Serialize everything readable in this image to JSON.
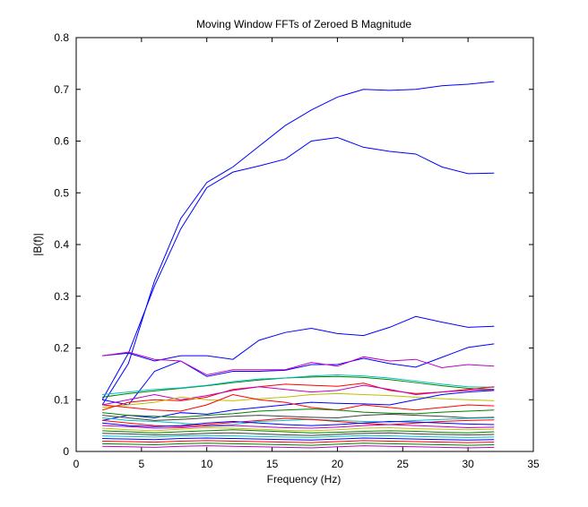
{
  "chart_data": {
    "type": "line",
    "title": "Moving Window FFTs of Zeroed B Magnitude",
    "xlabel": "Frequency (Hz)",
    "ylabel": "|B(f)|",
    "xlim": [
      0,
      35
    ],
    "ylim": [
      0,
      0.8
    ],
    "x_ticks": [
      0,
      5,
      10,
      15,
      20,
      25,
      30,
      35
    ],
    "y_ticks": [
      0,
      0.1,
      0.2,
      0.3,
      0.4,
      0.5,
      0.6,
      0.7,
      0.8
    ],
    "grid": false,
    "legend": "none",
    "x": [
      2,
      4,
      6,
      8,
      10,
      12,
      14,
      16,
      18,
      20,
      22,
      24,
      26,
      28,
      30,
      32
    ],
    "series_colors": [
      "#0000ff",
      "#008000",
      "#ff0000",
      "#00bfbf",
      "#bf00bf",
      "#bfbf00",
      "#404040"
    ],
    "series": [
      {
        "color": "#0000ff",
        "values": [
          0.09,
          0.17,
          0.33,
          0.45,
          0.52,
          0.55,
          0.59,
          0.63,
          0.66,
          0.685,
          0.7,
          0.698,
          0.7,
          0.707,
          0.71,
          0.715
        ]
      },
      {
        "color": "#0000ff",
        "values": [
          0.1,
          0.19,
          0.32,
          0.43,
          0.51,
          0.54,
          0.552,
          0.565,
          0.6,
          0.607,
          0.588,
          0.58,
          0.575,
          0.55,
          0.537,
          0.538
        ]
      },
      {
        "color": "#0000ff",
        "values": [
          0.185,
          0.19,
          0.175,
          0.185,
          0.185,
          0.178,
          0.215,
          0.23,
          0.238,
          0.228,
          0.224,
          0.24,
          0.261,
          0.25,
          0.24,
          0.242
        ]
      },
      {
        "color": "#0000ff",
        "values": [
          0.1,
          0.09,
          0.155,
          0.175,
          0.145,
          0.155,
          0.155,
          0.157,
          0.168,
          0.168,
          0.18,
          0.17,
          0.163,
          0.182,
          0.201,
          0.208
        ]
      },
      {
        "color": "#bf00bf",
        "values": [
          0.185,
          0.192,
          0.178,
          0.175,
          0.148,
          0.158,
          0.158,
          0.158,
          0.172,
          0.165,
          0.183,
          0.175,
          0.178,
          0.162,
          0.168,
          0.165
        ]
      },
      {
        "color": "#008000",
        "values": [
          0.105,
          0.112,
          0.117,
          0.122,
          0.127,
          0.133,
          0.138,
          0.142,
          0.144,
          0.145,
          0.143,
          0.139,
          0.133,
          0.127,
          0.122,
          0.12
        ]
      },
      {
        "color": "#00bfbf",
        "values": [
          0.11,
          0.115,
          0.12,
          0.123,
          0.128,
          0.135,
          0.14,
          0.142,
          0.146,
          0.148,
          0.146,
          0.142,
          0.136,
          0.13,
          0.125,
          0.124
        ]
      },
      {
        "color": "#ff0000",
        "values": [
          0.08,
          0.095,
          0.1,
          0.098,
          0.105,
          0.12,
          0.125,
          0.13,
          0.128,
          0.126,
          0.132,
          0.118,
          0.112,
          0.115,
          0.12,
          0.125
        ]
      },
      {
        "color": "#bf00bf",
        "values": [
          0.09,
          0.1,
          0.11,
          0.1,
          0.108,
          0.118,
          0.125,
          0.12,
          0.115,
          0.118,
          0.128,
          0.12,
          0.11,
          0.115,
          0.118,
          0.12
        ]
      },
      {
        "color": "#bfbf00",
        "values": [
          0.085,
          0.09,
          0.095,
          0.105,
          0.1,
          0.098,
          0.102,
          0.105,
          0.11,
          0.112,
          0.11,
          0.108,
          0.105,
          0.102,
          0.1,
          0.098
        ]
      },
      {
        "color": "#0000ff",
        "values": [
          0.06,
          0.07,
          0.065,
          0.075,
          0.072,
          0.08,
          0.085,
          0.09,
          0.095,
          0.093,
          0.092,
          0.09,
          0.1,
          0.11,
          0.115,
          0.118
        ]
      },
      {
        "color": "#ff0000",
        "values": [
          0.09,
          0.085,
          0.08,
          0.078,
          0.09,
          0.11,
          0.1,
          0.095,
          0.085,
          0.08,
          0.09,
          0.085,
          0.08,
          0.085,
          0.09,
          0.088
        ]
      },
      {
        "color": "#008000",
        "values": [
          0.075,
          0.07,
          0.068,
          0.066,
          0.07,
          0.073,
          0.078,
          0.08,
          0.082,
          0.08,
          0.076,
          0.074,
          0.073,
          0.076,
          0.078,
          0.08
        ]
      },
      {
        "color": "#404040",
        "values": [
          0.07,
          0.065,
          0.06,
          0.062,
          0.065,
          0.068,
          0.07,
          0.068,
          0.066,
          0.065,
          0.07,
          0.072,
          0.07,
          0.068,
          0.065,
          0.066
        ]
      },
      {
        "color": "#00bfbf",
        "values": [
          0.065,
          0.06,
          0.058,
          0.055,
          0.05,
          0.052,
          0.058,
          0.06,
          0.062,
          0.06,
          0.058,
          0.057,
          0.06,
          0.062,
          0.064,
          0.065
        ]
      },
      {
        "color": "#ff0000",
        "values": [
          0.06,
          0.055,
          0.05,
          0.048,
          0.052,
          0.056,
          0.06,
          0.064,
          0.062,
          0.058,
          0.054,
          0.052,
          0.055,
          0.058,
          0.06,
          0.061
        ]
      },
      {
        "color": "#0000ff",
        "values": [
          0.055,
          0.05,
          0.048,
          0.05,
          0.055,
          0.058,
          0.055,
          0.052,
          0.05,
          0.052,
          0.055,
          0.058,
          0.057,
          0.055,
          0.053,
          0.052
        ]
      },
      {
        "color": "#bf00bf",
        "values": [
          0.05,
          0.048,
          0.045,
          0.046,
          0.049,
          0.05,
          0.048,
          0.046,
          0.045,
          0.047,
          0.05,
          0.052,
          0.05,
          0.048,
          0.046,
          0.047
        ]
      },
      {
        "color": "#bfbf00",
        "values": [
          0.045,
          0.042,
          0.04,
          0.043,
          0.046,
          0.045,
          0.043,
          0.041,
          0.04,
          0.042,
          0.045,
          0.046,
          0.044,
          0.043,
          0.042,
          0.043
        ]
      },
      {
        "color": "#008000",
        "values": [
          0.04,
          0.038,
          0.036,
          0.038,
          0.04,
          0.042,
          0.04,
          0.038,
          0.036,
          0.037,
          0.039,
          0.04,
          0.039,
          0.037,
          0.036,
          0.038
        ]
      },
      {
        "color": "#404040",
        "values": [
          0.035,
          0.034,
          0.032,
          0.033,
          0.035,
          0.036,
          0.034,
          0.032,
          0.031,
          0.033,
          0.035,
          0.036,
          0.034,
          0.033,
          0.032,
          0.033
        ]
      },
      {
        "color": "#00bfbf",
        "values": [
          0.03,
          0.029,
          0.028,
          0.03,
          0.031,
          0.03,
          0.029,
          0.028,
          0.027,
          0.029,
          0.031,
          0.03,
          0.029,
          0.028,
          0.027,
          0.028
        ]
      },
      {
        "color": "#0000ff",
        "values": [
          0.025,
          0.024,
          0.023,
          0.025,
          0.026,
          0.025,
          0.024,
          0.023,
          0.022,
          0.024,
          0.026,
          0.025,
          0.024,
          0.023,
          0.022,
          0.023
        ]
      },
      {
        "color": "#ff0000",
        "values": [
          0.02,
          0.019,
          0.018,
          0.02,
          0.021,
          0.02,
          0.019,
          0.018,
          0.017,
          0.019,
          0.021,
          0.02,
          0.019,
          0.018,
          0.017,
          0.018
        ]
      },
      {
        "color": "#008000",
        "values": [
          0.015,
          0.014,
          0.013,
          0.015,
          0.016,
          0.015,
          0.014,
          0.013,
          0.012,
          0.014,
          0.016,
          0.015,
          0.014,
          0.013,
          0.012,
          0.013
        ]
      },
      {
        "color": "#bf00bf",
        "values": [
          0.01,
          0.009,
          0.008,
          0.01,
          0.011,
          0.01,
          0.009,
          0.008,
          0.007,
          0.009,
          0.011,
          0.01,
          0.009,
          0.008,
          0.007,
          0.008
        ]
      }
    ]
  }
}
